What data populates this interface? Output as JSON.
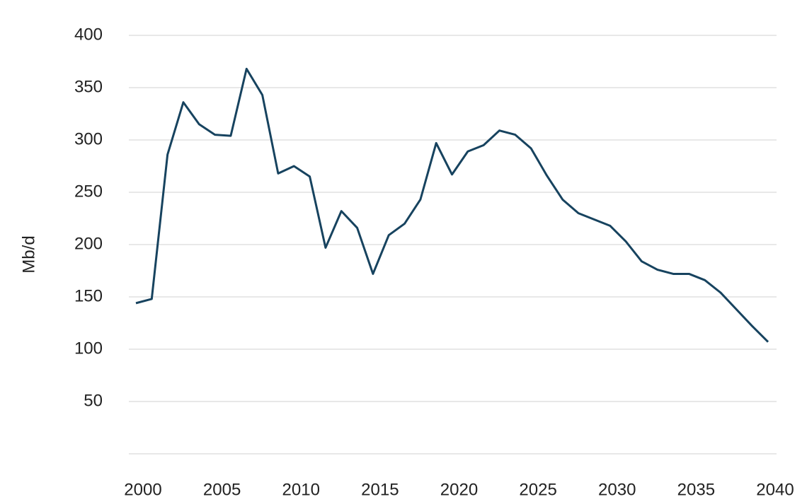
{
  "chart_data": {
    "type": "line",
    "y_label": "Mb/d",
    "x": [
      2000,
      2001,
      2002,
      2003,
      2004,
      2005,
      2006,
      2007,
      2008,
      2009,
      2010,
      2011,
      2012,
      2013,
      2014,
      2015,
      2016,
      2017,
      2018,
      2019,
      2020,
      2021,
      2022,
      2023,
      2024,
      2025,
      2026,
      2027,
      2028,
      2029,
      2030,
      2031,
      2032,
      2033,
      2034,
      2035,
      2036,
      2037,
      2038,
      2039,
      2040
    ],
    "series": [
      {
        "color": "#17435f",
        "values": [
          144,
          148,
          286,
          336,
          315,
          305,
          304,
          368,
          343,
          268,
          275,
          265,
          197,
          232,
          216,
          172,
          209,
          220,
          243,
          297,
          267,
          289,
          295,
          309,
          305,
          292,
          266,
          243,
          230,
          224,
          218,
          203,
          184,
          176,
          172,
          172,
          166,
          154,
          138,
          122,
          107
        ]
      }
    ],
    "xlim": [
      2000,
      2040
    ],
    "xticks": [
      2000,
      2005,
      2010,
      2015,
      2020,
      2025,
      2030,
      2035,
      2040
    ],
    "ylim": [
      0,
      400
    ],
    "yticks": [
      50,
      100,
      150,
      200,
      250,
      300,
      350,
      400
    ],
    "grid": true
  }
}
